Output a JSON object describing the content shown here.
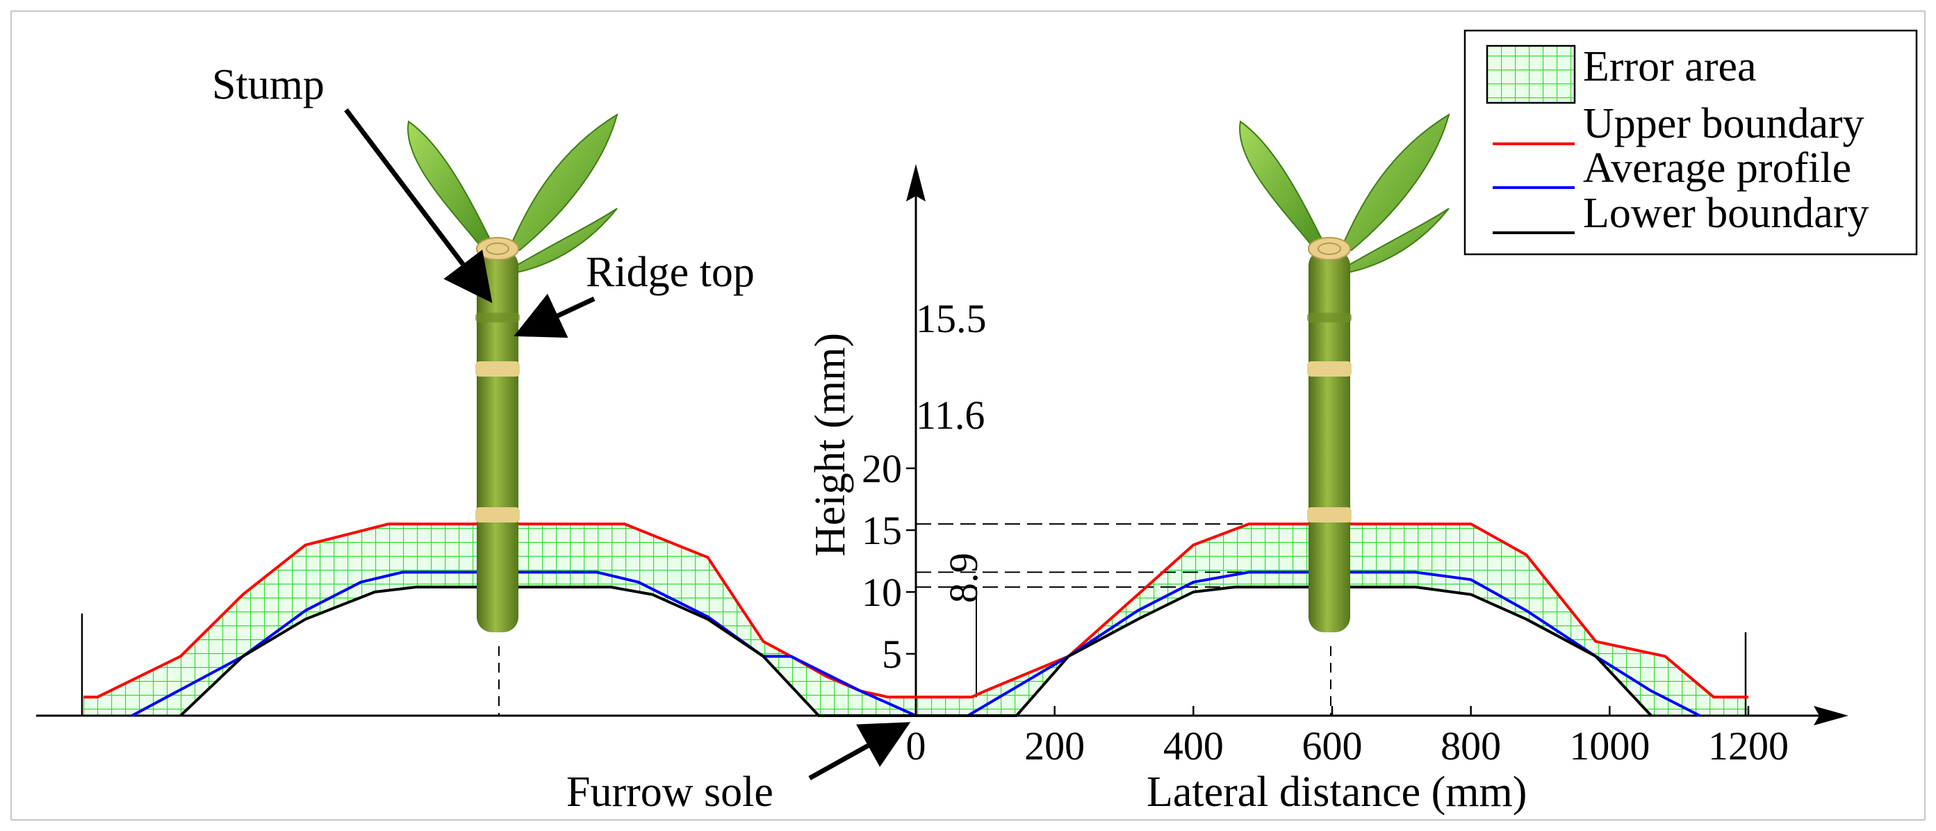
{
  "colors": {
    "upper": "#ff0000",
    "average": "#0000ff",
    "lower": "#000000",
    "error_grid": "#33dd33",
    "error_bg": "#eaffea",
    "stalk_dark": "#5b7d1c",
    "stalk_light": "#8fb03a",
    "node": "#e8cf8a",
    "leaf": "#7cc43a",
    "leaf_dark": "#4a8f1e"
  },
  "annotations": {
    "stump": "Stump",
    "ridge_top": "Ridge top",
    "furrow_sole": "Furrow sole"
  },
  "legend": {
    "items": [
      {
        "key": "error",
        "label": "Error area",
        "symbol": "hatched-box-icon"
      },
      {
        "key": "upper",
        "label": "Upper boundary",
        "symbol": "red-line-icon"
      },
      {
        "key": "average",
        "label": "Average profile",
        "symbol": "blue-line-icon"
      },
      {
        "key": "lower",
        "label": "Lower boundary",
        "symbol": "black-line-icon"
      }
    ]
  },
  "chart_data": {
    "type": "line",
    "title": "",
    "xlabel": "Lateral distance (mm)",
    "ylabel": "Height (mm)",
    "xlim": [
      -1200,
      1200
    ],
    "ylim": [
      0,
      20
    ],
    "xticks": [
      0,
      200,
      400,
      600,
      800,
      1000,
      1200
    ],
    "yticks": [
      5,
      10,
      15,
      20
    ],
    "dimension_labels": [
      {
        "label": "15.5",
        "value": 15.5
      },
      {
        "label": "11.6",
        "value": 11.6
      },
      {
        "label": "8.9",
        "value": 8.9
      }
    ],
    "series": [
      {
        "name": "Upper boundary",
        "key": "upper",
        "x": [
          -1200,
          -1180,
          -1060,
          -970,
          -880,
          -760,
          -680,
          -600,
          -520,
          -420,
          -300,
          -220,
          -180,
          -130,
          -80,
          -40,
          0,
          40,
          80,
          100,
          220,
          320,
          400,
          480,
          560,
          600,
          640,
          720,
          800,
          880,
          980,
          1080,
          1150,
          1200
        ],
        "y": [
          1.5,
          1.5,
          4.8,
          9.8,
          13.8,
          15.5,
          15.5,
          15.5,
          15.5,
          15.5,
          12.8,
          6.0,
          4.8,
          3.2,
          2.0,
          1.5,
          1.5,
          1.5,
          1.5,
          2.0,
          4.8,
          9.8,
          13.8,
          15.5,
          15.5,
          15.5,
          15.5,
          15.5,
          15.5,
          13.0,
          6.0,
          4.8,
          1.5,
          1.5
        ]
      },
      {
        "name": "Average profile",
        "key": "average",
        "x": [
          -1130,
          -970,
          -880,
          -800,
          -740,
          -680,
          -600,
          -520,
          -460,
          -400,
          -300,
          -220,
          -180,
          -80,
          0,
          75,
          220,
          320,
          400,
          480,
          560,
          600,
          640,
          720,
          800,
          880,
          980,
          1060,
          1130
        ],
        "y": [
          0.0,
          4.8,
          8.5,
          10.8,
          11.6,
          11.6,
          11.6,
          11.6,
          11.6,
          10.8,
          8.0,
          4.8,
          4.8,
          2.0,
          0.0,
          0.0,
          4.8,
          8.5,
          10.8,
          11.6,
          11.6,
          11.6,
          11.6,
          11.6,
          11.0,
          8.5,
          4.8,
          2.0,
          0.0
        ]
      },
      {
        "name": "Lower boundary",
        "key": "lower",
        "x": [
          -1060,
          -970,
          -880,
          -780,
          -720,
          -680,
          -600,
          -520,
          -440,
          -380,
          -300,
          -220,
          -140,
          -80,
          0,
          145,
          220,
          320,
          400,
          460,
          560,
          600,
          640,
          720,
          800,
          880,
          980,
          1060
        ],
        "y": [
          0.0,
          4.8,
          7.8,
          10.0,
          10.4,
          10.4,
          10.4,
          10.4,
          10.4,
          9.8,
          7.8,
          4.8,
          0.0,
          0.0,
          0.0,
          0.0,
          4.8,
          7.8,
          10.0,
          10.4,
          10.4,
          10.4,
          10.4,
          10.4,
          9.8,
          7.8,
          4.8,
          0.0
        ]
      }
    ],
    "error_area": "between upper and lower boundary",
    "plants_at_x": [
      -600,
      600
    ],
    "legend_position": "top-right",
    "grid": false
  }
}
